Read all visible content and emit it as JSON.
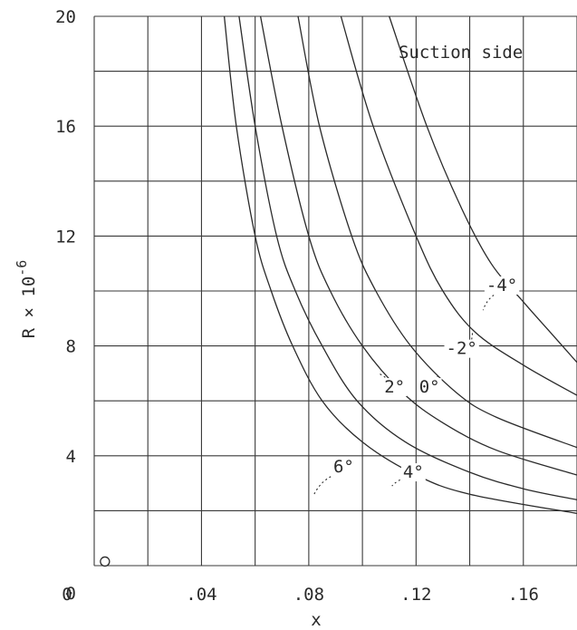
{
  "chart_data": {
    "type": "line",
    "annotation_title": "Suction side",
    "xlabel": "x",
    "ylabel": "R × 10",
    "ylabel_exponent": "-6",
    "xlim": [
      0,
      0.18
    ],
    "ylim": [
      0,
      20
    ],
    "grid": true,
    "x_ticks": [
      {
        "value": 0,
        "label": "0"
      },
      {
        "value": 0.04,
        "label": ".04"
      },
      {
        "value": 0.08,
        "label": ".08"
      },
      {
        "value": 0.12,
        "label": ".12"
      },
      {
        "value": 0.16,
        "label": ".16"
      }
    ],
    "y_ticks": [
      {
        "value": 0,
        "label": "0"
      },
      {
        "value": 4,
        "label": "4"
      },
      {
        "value": 8,
        "label": "8"
      },
      {
        "value": 12,
        "label": "12"
      },
      {
        "value": 16,
        "label": "16"
      },
      {
        "value": 20,
        "label": "20"
      }
    ],
    "origin_marker": {
      "x": 0.004,
      "y": 0.15
    },
    "series": [
      {
        "name": "6°",
        "points": [
          [
            0.0485,
            20
          ],
          [
            0.053,
            16
          ],
          [
            0.06,
            12
          ],
          [
            0.066,
            10
          ],
          [
            0.074,
            8
          ],
          [
            0.085,
            6
          ],
          [
            0.1,
            4.5
          ],
          [
            0.12,
            3.3
          ],
          [
            0.14,
            2.6
          ],
          [
            0.18,
            1.9
          ]
        ]
      },
      {
        "name": "4°",
        "points": [
          [
            0.054,
            20
          ],
          [
            0.06,
            16
          ],
          [
            0.068,
            12
          ],
          [
            0.075,
            10
          ],
          [
            0.085,
            8
          ],
          [
            0.098,
            6
          ],
          [
            0.116,
            4.5
          ],
          [
            0.14,
            3.4
          ],
          [
            0.16,
            2.8
          ],
          [
            0.18,
            2.4
          ]
        ]
      },
      {
        "name": "2°",
        "points": [
          [
            0.062,
            20
          ],
          [
            0.07,
            16
          ],
          [
            0.08,
            12
          ],
          [
            0.088,
            10
          ],
          [
            0.1,
            8
          ],
          [
            0.115,
            6.3
          ],
          [
            0.13,
            5.2
          ],
          [
            0.15,
            4.2
          ],
          [
            0.18,
            3.3
          ]
        ]
      },
      {
        "name": "0°",
        "points": [
          [
            0.076,
            20
          ],
          [
            0.084,
            16
          ],
          [
            0.096,
            12
          ],
          [
            0.105,
            10
          ],
          [
            0.118,
            8
          ],
          [
            0.135,
            6.3
          ],
          [
            0.15,
            5.4
          ],
          [
            0.18,
            4.3
          ]
        ]
      },
      {
        "name": "-2°",
        "points": [
          [
            0.092,
            20
          ],
          [
            0.104,
            16
          ],
          [
            0.12,
            12
          ],
          [
            0.13,
            10
          ],
          [
            0.142,
            8.5
          ],
          [
            0.16,
            7.3
          ],
          [
            0.18,
            6.2
          ]
        ]
      },
      {
        "name": "-4°",
        "points": [
          [
            0.11,
            20
          ],
          [
            0.124,
            16
          ],
          [
            0.137,
            13
          ],
          [
            0.148,
            11
          ],
          [
            0.16,
            9.6
          ],
          [
            0.17,
            8.5
          ],
          [
            0.18,
            7.4
          ]
        ]
      }
    ],
    "labels": [
      {
        "text": "6°",
        "ax": 0.093,
        "ay": 3.4,
        "px": 0.082,
        "py": 2.6
      },
      {
        "text": "4°",
        "ax": 0.119,
        "ay": 3.2,
        "px": 0.111,
        "py": 2.9
      },
      {
        "text": "2°",
        "ax": 0.112,
        "ay": 6.3,
        "px": 0.106,
        "py": 7.0
      },
      {
        "text": "0°",
        "ax": 0.125,
        "ay": 6.3,
        "px": 0.128,
        "py": 7.0
      },
      {
        "text": "-2°",
        "ax": 0.137,
        "ay": 7.7,
        "px": 0.141,
        "py": 8.5
      },
      {
        "text": "-4°",
        "ax": 0.152,
        "ay": 10.0,
        "px": 0.145,
        "py": 9.3
      }
    ]
  }
}
